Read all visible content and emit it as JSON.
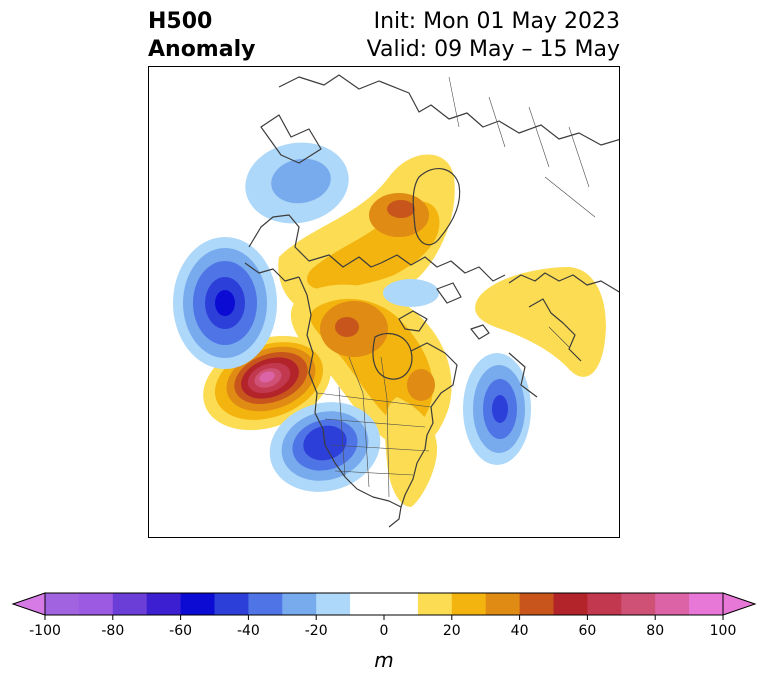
{
  "header": {
    "title_line1": "H500",
    "title_line2": "Anomaly",
    "init": "Init: Mon 01 May 2023",
    "valid": "Valid: 09 May – 15 May"
  },
  "colorbar": {
    "unit_label": "m",
    "ticks": [
      "-100",
      "-80",
      "-60",
      "-40",
      "-20",
      "0",
      "20",
      "40",
      "60",
      "80",
      "100"
    ],
    "bins": [
      {
        "range": "-100 to -90",
        "color": "#a163df"
      },
      {
        "range": "-90 to -80",
        "color": "#9c59e2"
      },
      {
        "range": "-80 to -70",
        "color": "#6b3fd7"
      },
      {
        "range": "-70 to -60",
        "color": "#3b1fd1"
      },
      {
        "range": "-60 to -50",
        "color": "#0b0bd4"
      },
      {
        "range": "-50 to -40",
        "color": "#2c3fd8"
      },
      {
        "range": "-40 to -30",
        "color": "#4f74e6"
      },
      {
        "range": "-30 to -20",
        "color": "#78aaee"
      },
      {
        "range": "-20 to -10",
        "color": "#aed8f9"
      },
      {
        "range": "-10 to 0",
        "color": "#ffffff"
      },
      {
        "range": "0 to 10",
        "color": "#ffffff"
      },
      {
        "range": "10 to 20",
        "color": "#fcdc52"
      },
      {
        "range": "20 to 30",
        "color": "#f3b40f"
      },
      {
        "range": "30 to 40",
        "color": "#df8b14"
      },
      {
        "range": "40 to 50",
        "color": "#c8561c"
      },
      {
        "range": "50 to 60",
        "color": "#b2232a"
      },
      {
        "range": "60 to 70",
        "color": "#c2394f"
      },
      {
        "range": "70 to 80",
        "color": "#cf5276"
      },
      {
        "range": "80 to 90",
        "color": "#dc63a6"
      },
      {
        "range": "90 to 100",
        "color": "#e878d8"
      }
    ],
    "extend_low_color": "#d67ae6",
    "extend_high_color": "#e878d8"
  },
  "map": {
    "projection": "north-polar-stereographic",
    "anomalies": [
      {
        "label": "gulf-of-alaska-trough",
        "sign": "negative",
        "peak_m": -55
      },
      {
        "label": "hudson-bay-ridge",
        "sign": "positive",
        "peak_m": 35
      },
      {
        "label": "greenland-ridge",
        "sign": "positive",
        "peak_m": 25
      },
      {
        "label": "arctic-trough",
        "sign": "negative",
        "peak_m": -15
      },
      {
        "label": "northeast-pacific-ridge",
        "sign": "positive",
        "peak_m": 80
      },
      {
        "label": "southwest-us-trough",
        "sign": "negative",
        "peak_m": -55
      },
      {
        "label": "western-atlantic-trough",
        "sign": "negative",
        "peak_m": -40
      },
      {
        "label": "eastern-us-ridge",
        "sign": "positive",
        "peak_m": 15
      },
      {
        "label": "siberia-trough",
        "sign": "negative",
        "peak_m": -30
      },
      {
        "label": "scandinavia-ridge",
        "sign": "positive",
        "peak_m": 15
      }
    ]
  }
}
